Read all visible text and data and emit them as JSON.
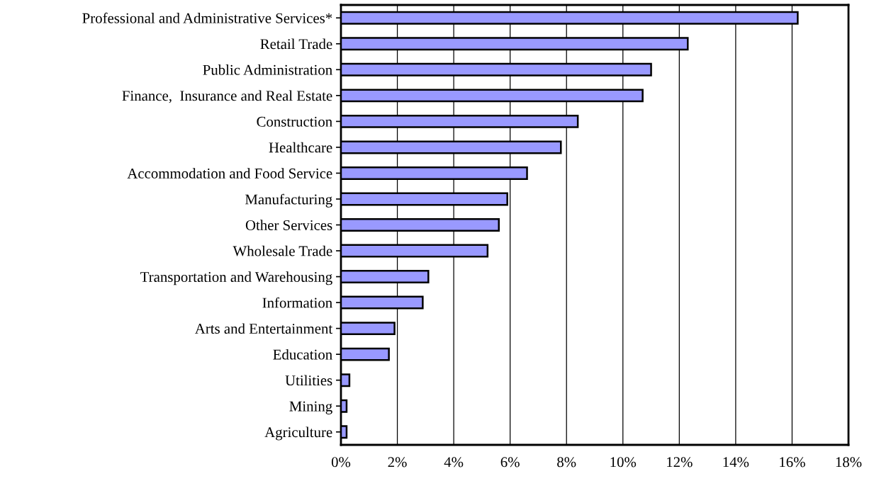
{
  "chart_data": {
    "type": "bar",
    "orientation": "horizontal",
    "categories": [
      "Professional and Administrative Services*",
      "Retail Trade",
      "Public Administration",
      "Finance,  Insurance and Real Estate",
      "Construction",
      "Healthcare",
      "Accommodation and Food Service",
      "Manufacturing",
      "Other Services",
      "Wholesale Trade",
      "Transportation and Warehousing",
      "Information",
      "Arts and Entertainment",
      "Education",
      "Utilities",
      "Mining",
      "Agriculture"
    ],
    "values": [
      16.2,
      12.3,
      11.0,
      10.7,
      8.4,
      7.8,
      6.6,
      5.9,
      5.6,
      5.2,
      3.1,
      2.9,
      1.9,
      1.7,
      0.3,
      0.2,
      0.2
    ],
    "color": "#9999ff",
    "xlim": [
      0,
      18
    ],
    "xticks": [
      {
        "value": 0,
        "label": "0%"
      },
      {
        "value": 2,
        "label": "2%"
      },
      {
        "value": 4,
        "label": "4%"
      },
      {
        "value": 6,
        "label": "6%"
      },
      {
        "value": 8,
        "label": "8%"
      },
      {
        "value": 10,
        "label": "10%"
      },
      {
        "value": 12,
        "label": "12%"
      },
      {
        "value": 14,
        "label": "14%"
      },
      {
        "value": 16,
        "label": "16%"
      },
      {
        "value": 18,
        "label": "18%"
      }
    ],
    "grid": "x"
  }
}
